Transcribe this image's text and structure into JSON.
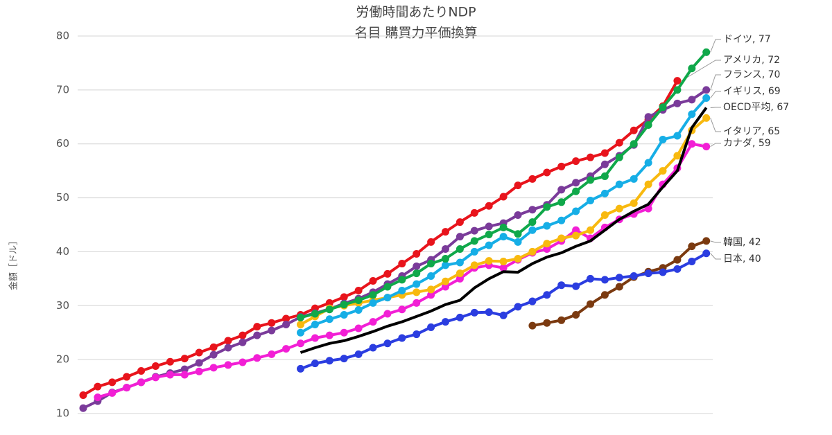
{
  "chart_data": {
    "type": "line",
    "title": "労働時間あたりNDP",
    "subtitle": "名目 購買力平価換算",
    "y_label": "金額［ドル］",
    "categories": [
      null,
      null,
      null,
      null,
      null,
      null,
      null,
      null,
      null,
      null,
      null,
      null,
      null,
      null,
      null,
      null,
      null,
      null,
      null,
      null,
      null,
      null,
      null,
      null,
      null,
      null,
      null,
      null,
      null,
      null,
      null,
      null,
      null,
      null,
      null,
      null,
      null,
      null,
      null,
      null,
      null,
      null,
      null,
      null
    ],
    "ylim": [
      10,
      80
    ],
    "yticks": [
      10,
      20,
      30,
      40,
      50,
      60,
      70,
      80
    ],
    "grid": true,
    "series": [
      {
        "name": "アメリカ, 72",
        "color": "#e8141c",
        "values": [
          13.4,
          15.0,
          15.8,
          16.8,
          17.9,
          18.8,
          19.6,
          20.2,
          21.3,
          22.3,
          23.5,
          24.5,
          26.1,
          26.8,
          27.6,
          28.3,
          29.5,
          30.5,
          31.6,
          32.8,
          34.6,
          35.9,
          37.8,
          39.6,
          41.8,
          43.7,
          45.5,
          47.2,
          48.5,
          50.2,
          52.3,
          53.5,
          54.7,
          55.8,
          56.8,
          57.5,
          58.3,
          60.2,
          62.5,
          64.5,
          67.0,
          71.7,
          null,
          null
        ]
      },
      {
        "name": "フランス, 70",
        "color": "#7a3b9a",
        "values": [
          11.0,
          12.3,
          13.9,
          14.8,
          15.8,
          16.8,
          17.5,
          18.2,
          19.4,
          20.9,
          22.2,
          23.2,
          24.5,
          25.4,
          26.5,
          27.9,
          28.6,
          29.4,
          30.4,
          31.3,
          32.5,
          34.0,
          35.5,
          37.3,
          38.5,
          40.5,
          42.8,
          43.9,
          44.7,
          45.3,
          46.8,
          47.8,
          48.7,
          51.5,
          52.8,
          54.0,
          56.2,
          57.8,
          59.8,
          65.0,
          66.3,
          67.5,
          68.2,
          70.0
        ]
      },
      {
        "name": "カナダ, 59",
        "color": "#f21fd5",
        "values": [
          null,
          13.0,
          13.8,
          14.8,
          15.8,
          16.7,
          17.2,
          17.2,
          17.8,
          18.5,
          19.0,
          19.5,
          20.3,
          21.0,
          22.0,
          23.0,
          24.0,
          24.5,
          25.0,
          25.8,
          27.0,
          28.5,
          29.3,
          30.5,
          32.0,
          33.5,
          35.0,
          37.0,
          37.5,
          37.0,
          38.5,
          39.8,
          40.5,
          42.0,
          44.0,
          42.5,
          44.5,
          46.0,
          47.0,
          48.0,
          52.5,
          55.5,
          60.0,
          59.5
        ]
      },
      {
        "name": "イタリア, 65",
        "color": "#f8b90f",
        "values": [
          null,
          null,
          null,
          null,
          null,
          null,
          null,
          null,
          null,
          null,
          null,
          null,
          null,
          null,
          null,
          26.5,
          28.0,
          29.5,
          30.0,
          30.5,
          31.0,
          31.5,
          32.0,
          32.5,
          33.0,
          34.5,
          36.0,
          37.5,
          38.3,
          38.2,
          38.7,
          40.0,
          41.5,
          42.5,
          43.0,
          44.0,
          46.8,
          48.0,
          49.0,
          52.5,
          55.0,
          57.8,
          62.5,
          64.8
        ]
      },
      {
        "name": "イギリス, 69",
        "color": "#16aee6",
        "values": [
          null,
          null,
          null,
          null,
          null,
          null,
          null,
          null,
          null,
          null,
          null,
          null,
          null,
          null,
          null,
          25.0,
          26.5,
          27.5,
          28.3,
          29.2,
          30.5,
          31.5,
          32.8,
          34.0,
          35.5,
          37.5,
          38.0,
          40.0,
          41.2,
          42.8,
          41.8,
          44.0,
          44.8,
          45.8,
          47.5,
          49.5,
          50.8,
          52.5,
          53.5,
          56.5,
          60.8,
          61.5,
          65.5,
          68.5
        ]
      },
      {
        "name": "ドイツ, 77",
        "color": "#10a84a",
        "values": [
          null,
          null,
          null,
          null,
          null,
          null,
          null,
          null,
          null,
          null,
          null,
          null,
          null,
          null,
          null,
          27.8,
          28.5,
          29.3,
          30.2,
          31.0,
          32.0,
          33.5,
          34.8,
          36.0,
          37.8,
          38.7,
          40.5,
          42.0,
          43.2,
          44.5,
          43.3,
          45.5,
          48.3,
          49.2,
          51.2,
          53.3,
          54.0,
          57.5,
          60.0,
          63.5,
          66.8,
          70.0,
          74.0,
          77.0
        ]
      },
      {
        "name": "OECD平均, 67",
        "color": "#000000",
        "markers": false,
        "values": [
          null,
          null,
          null,
          null,
          null,
          null,
          null,
          null,
          null,
          null,
          null,
          null,
          null,
          null,
          null,
          21.3,
          22.2,
          23.0,
          23.5,
          24.3,
          25.2,
          26.2,
          27.0,
          28.0,
          29.0,
          30.2,
          31.0,
          33.3,
          35.0,
          36.3,
          36.2,
          37.8,
          39.0,
          39.8,
          41.0,
          42.0,
          44.0,
          46.0,
          47.5,
          48.8,
          52.0,
          55.0,
          63.0,
          66.7
        ]
      },
      {
        "name": "韓国, 42",
        "color": "#7b3a10",
        "values": [
          null,
          null,
          null,
          null,
          null,
          null,
          null,
          null,
          null,
          null,
          null,
          null,
          null,
          null,
          null,
          null,
          null,
          null,
          null,
          null,
          null,
          null,
          null,
          null,
          null,
          null,
          null,
          null,
          null,
          null,
          null,
          26.3,
          26.8,
          27.3,
          28.3,
          30.3,
          32.0,
          33.5,
          35.3,
          36.3,
          37.0,
          38.5,
          41.0,
          42.0
        ]
      },
      {
        "name": "日本, 40",
        "color": "#2b3de0",
        "values": [
          null,
          null,
          null,
          null,
          null,
          null,
          null,
          null,
          null,
          null,
          null,
          null,
          null,
          null,
          null,
          18.3,
          19.3,
          19.8,
          20.2,
          21.0,
          22.2,
          23.0,
          24.0,
          24.7,
          26.0,
          27.0,
          27.8,
          28.7,
          28.8,
          28.2,
          29.8,
          30.8,
          32.0,
          33.8,
          33.6,
          35.0,
          34.8,
          35.2,
          35.5,
          36.0,
          36.2,
          36.8,
          38.2,
          39.7
        ]
      }
    ]
  }
}
